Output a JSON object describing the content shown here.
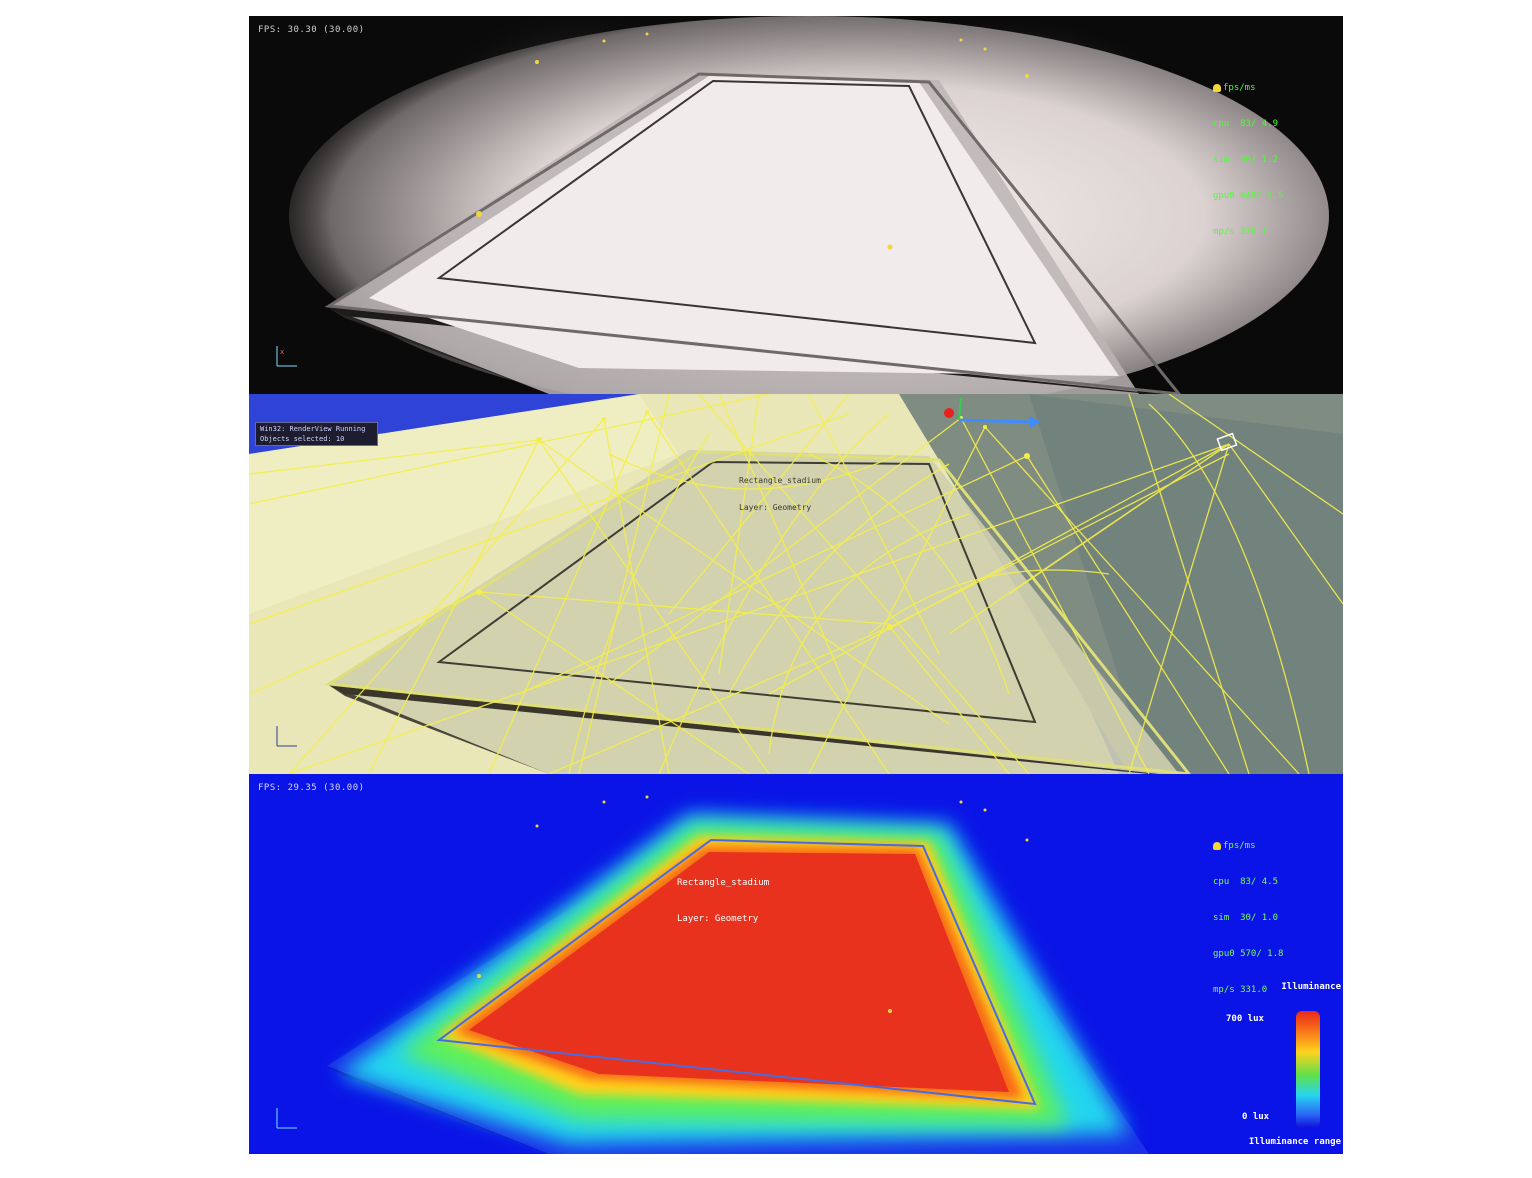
{
  "panels": {
    "top": {
      "fps": "FPS: 30.30 (30.00)",
      "stats_header": "fps/ms",
      "stats": [
        "cpu  83/ 4.9",
        "sim  30/ 1.2",
        "gpu0 640/ 1.5",
        "mp/s 376.1"
      ],
      "colors": {
        "background": "#0b0a0a",
        "stats_text": "#4cff34",
        "floor_glow": "#f4ecec"
      }
    },
    "middle": {
      "status_lines": [
        "Win32: RenderView Running",
        "Objects selected: 10"
      ],
      "object_label": [
        "Rectangle_stadium",
        "Layer: Geometry"
      ],
      "colors": {
        "sky": "#2f43d6",
        "light_rays": "#f5ef4a",
        "floor": "#d9d9b8"
      }
    },
    "bottom": {
      "fps": "FPS: 29.35 (30.00)",
      "stats_header": "fps/ms",
      "stats": [
        "cpu  83/ 4.5",
        "sim  30/ 1.0",
        "gpu0 570/ 1.8",
        "mp/s 331.0"
      ],
      "object_label": [
        "Rectangle_stadium",
        "Layer: Geometry"
      ],
      "legend": {
        "title": "Illuminance",
        "max_label": "700 lux",
        "min_label": "0 lux",
        "range_label": "Illuminance range"
      },
      "colors": {
        "background": "#0a14e6",
        "hot": "#e8321e",
        "mid": "#5ef05a",
        "cool": "#21d6ef"
      }
    }
  },
  "icons": [
    "lamp-icon",
    "axis-gizmo-icon",
    "luminaire-marker-icon",
    "move-gizmo-icon"
  ]
}
